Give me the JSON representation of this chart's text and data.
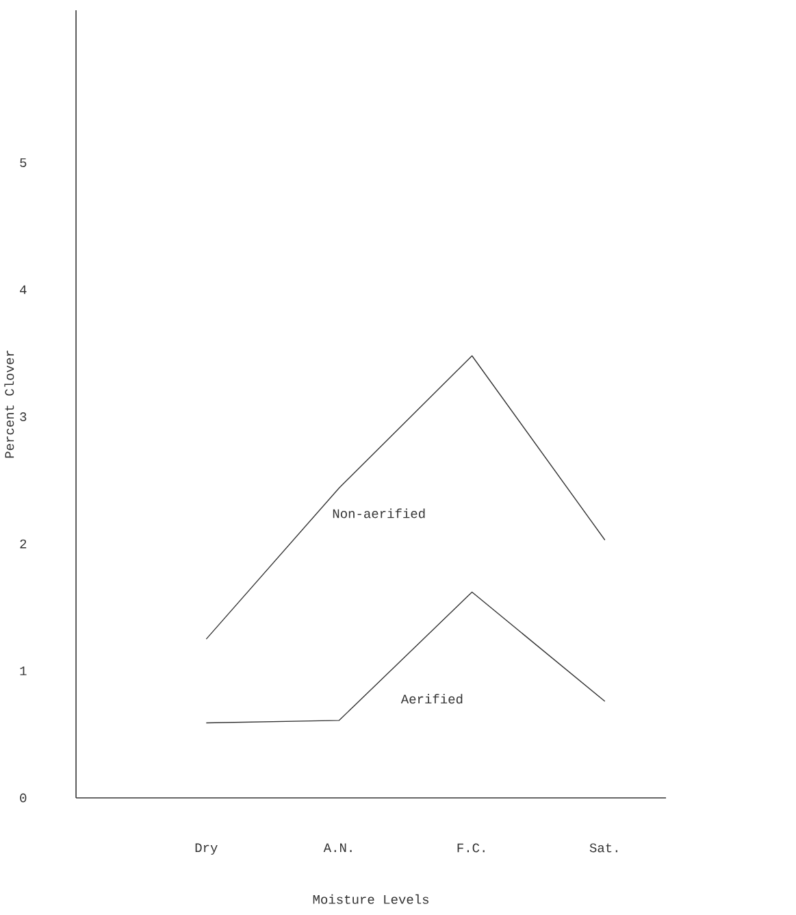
{
  "chart_data": {
    "type": "line",
    "xlabel": "Moisture Levels",
    "ylabel": "Percent Clover",
    "categories": [
      "Dry",
      "A.N.",
      "F.C.",
      "Sat."
    ],
    "series": [
      {
        "name": "Non-aerified",
        "color": "#333333",
        "values": [
          1.25,
          2.44,
          3.48,
          2.03
        ]
      },
      {
        "name": "Aerified",
        "color": "#333333",
        "values": [
          0.59,
          0.61,
          1.62,
          0.76
        ]
      }
    ],
    "ylim": [
      0,
      6.2
    ],
    "yticks": [
      0,
      1,
      2,
      3,
      4,
      5
    ],
    "grid": false,
    "legend": false,
    "marker": "none",
    "line_style": "solid"
  }
}
